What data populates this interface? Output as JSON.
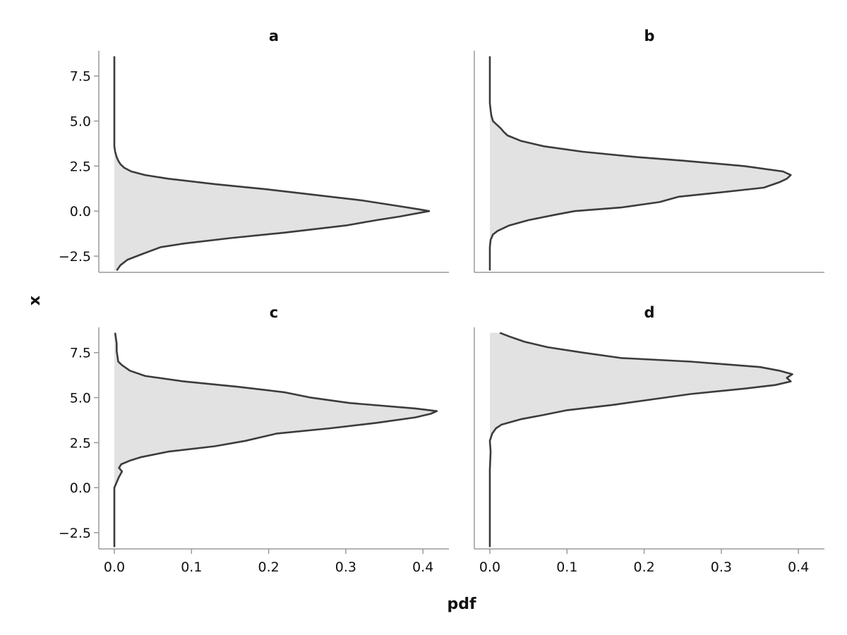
{
  "chart_data": {
    "type": "area",
    "layout": "2x2 facets",
    "xlabel": "pdf",
    "ylabel": "x",
    "pdf_range": [
      0.0,
      0.43
    ],
    "x_range": [
      -3.4,
      8.9
    ],
    "pdf_ticks": [
      0.0,
      0.1,
      0.2,
      0.3,
      0.4
    ],
    "pdf_tick_labels": [
      "0.0",
      "0.1",
      "0.2",
      "0.3",
      "0.4"
    ],
    "x_ticks": [
      -2.5,
      0.0,
      2.5,
      5.0,
      7.5
    ],
    "x_tick_labels": [
      "−2.5",
      "0.0",
      "2.5",
      "5.0",
      "7.5"
    ],
    "grid": false,
    "panels": [
      {
        "title": "a",
        "x": [
          -3.3,
          -3.0,
          -2.7,
          -2.4,
          -2.0,
          -1.8,
          -1.5,
          -1.2,
          -1.0,
          -0.8,
          -0.5,
          -0.3,
          -0.1,
          0.0,
          0.1,
          0.3,
          0.6,
          0.8,
          1.0,
          1.2,
          1.5,
          1.8,
          2.0,
          2.2,
          2.4,
          2.6,
          2.8,
          3.0,
          3.3,
          3.6,
          4.0,
          5.0,
          6.0,
          7.0,
          8.0,
          8.6
        ],
        "pdf": [
          0.003,
          0.008,
          0.017,
          0.035,
          0.06,
          0.09,
          0.15,
          0.22,
          0.26,
          0.3,
          0.34,
          0.37,
          0.395,
          0.408,
          0.395,
          0.365,
          0.32,
          0.28,
          0.24,
          0.2,
          0.13,
          0.07,
          0.04,
          0.022,
          0.013,
          0.008,
          0.005,
          0.003,
          0.001,
          0.0,
          0.0,
          0.0,
          0.0,
          0.0,
          0.0,
          0.0
        ]
      },
      {
        "title": "b",
        "x": [
          -3.3,
          -2.5,
          -2.0,
          -1.6,
          -1.3,
          -1.1,
          -0.8,
          -0.5,
          -0.2,
          0.0,
          0.2,
          0.5,
          0.8,
          1.0,
          1.3,
          1.6,
          1.8,
          2.0,
          2.2,
          2.5,
          2.8,
          3.0,
          3.3,
          3.6,
          3.9,
          4.2,
          4.4,
          4.6,
          4.8,
          5.0,
          5.3,
          5.6,
          6.0,
          7.0,
          8.0,
          8.6
        ],
        "pdf": [
          0.0,
          0.0,
          0.0,
          0.001,
          0.004,
          0.01,
          0.025,
          0.05,
          0.085,
          0.11,
          0.17,
          0.22,
          0.245,
          0.29,
          0.355,
          0.375,
          0.385,
          0.39,
          0.38,
          0.33,
          0.25,
          0.19,
          0.12,
          0.07,
          0.04,
          0.023,
          0.018,
          0.014,
          0.009,
          0.004,
          0.002,
          0.001,
          0.0,
          0.0,
          0.0,
          0.0
        ]
      },
      {
        "title": "c",
        "x": [
          -3.3,
          -2.0,
          -1.0,
          0.0,
          0.3,
          0.6,
          0.9,
          1.1,
          1.3,
          1.5,
          1.7,
          2.0,
          2.3,
          2.6,
          3.0,
          3.3,
          3.6,
          3.9,
          4.1,
          4.25,
          4.4,
          4.7,
          5.0,
          5.3,
          5.6,
          5.9,
          6.2,
          6.5,
          6.8,
          7.0,
          7.3,
          7.6,
          8.0,
          8.6
        ],
        "pdf": [
          0.0,
          0.0,
          0.0,
          0.0,
          0.003,
          0.006,
          0.01,
          0.006,
          0.009,
          0.02,
          0.035,
          0.07,
          0.13,
          0.17,
          0.21,
          0.28,
          0.34,
          0.39,
          0.41,
          0.418,
          0.39,
          0.305,
          0.255,
          0.22,
          0.16,
          0.09,
          0.04,
          0.02,
          0.01,
          0.005,
          0.004,
          0.003,
          0.003,
          0.001
        ]
      },
      {
        "title": "d",
        "x": [
          -3.3,
          -2.0,
          -1.0,
          0.0,
          1.0,
          2.0,
          2.6,
          3.0,
          3.3,
          3.5,
          3.8,
          4.0,
          4.3,
          4.6,
          4.9,
          5.2,
          5.5,
          5.7,
          5.9,
          6.1,
          6.3,
          6.5,
          6.7,
          7.0,
          7.2,
          7.5,
          7.8,
          8.1,
          8.4,
          8.6
        ],
        "pdf": [
          0.0,
          0.0,
          0.0,
          0.0,
          0.0,
          0.001,
          0.0,
          0.003,
          0.008,
          0.015,
          0.04,
          0.065,
          0.1,
          0.16,
          0.21,
          0.26,
          0.33,
          0.37,
          0.39,
          0.385,
          0.392,
          0.375,
          0.35,
          0.26,
          0.17,
          0.12,
          0.075,
          0.045,
          0.025,
          0.013
        ]
      }
    ]
  }
}
